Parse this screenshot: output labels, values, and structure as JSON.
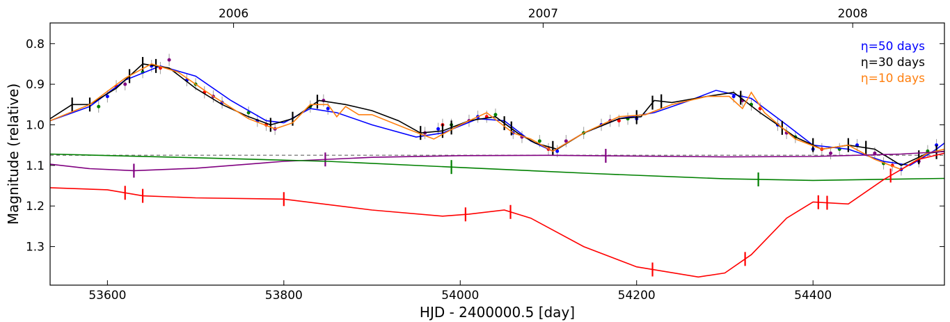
{
  "chart_data": {
    "type": "line",
    "x_label": "HJD - 2400000.5 [day]",
    "y_label": "Magnitude (relative)",
    "xlim": [
      53535,
      54549
    ],
    "ylim": [
      0.749,
      1.395
    ],
    "y_inverted": true,
    "xticks": [
      53600,
      53800,
      54000,
      54200,
      54400
    ],
    "yticks": [
      0.8,
      0.9,
      {
        "value": 1,
        "label": "1.0"
      },
      1.1,
      1.2,
      1.3
    ],
    "top_ticks": [
      {
        "value": 53743,
        "label": "2006"
      },
      {
        "value": 54094,
        "label": "2007"
      },
      {
        "value": 54445,
        "label": "2008"
      }
    ],
    "legend": "upper right",
    "reference_line": {
      "value": 1.075,
      "color": "#888888"
    },
    "series": [
      {
        "name": "η=50 days",
        "color": "#0000ff",
        "x": [
          53535,
          53580,
          53620,
          53660,
          53700,
          53740,
          53780,
          53800,
          53830,
          53860,
          53900,
          53950,
          53980,
          54020,
          54050,
          54080,
          54105,
          54140,
          54180,
          54220,
          54260,
          54290,
          54330,
          54370,
          54400,
          54440,
          54480,
          54510,
          54540,
          54549
        ],
        "values": [
          0.99,
          0.955,
          0.89,
          0.855,
          0.88,
          0.94,
          0.99,
          0.995,
          0.96,
          0.97,
          1.0,
          1.03,
          1.02,
          0.985,
          0.99,
          1.04,
          1.065,
          1.02,
          0.985,
          0.97,
          0.94,
          0.915,
          0.935,
          1.0,
          1.05,
          1.06,
          1.09,
          1.1,
          1.06,
          1.045
        ]
      },
      {
        "name": "η=30 days",
        "color": "#000000",
        "x": [
          53535,
          53560,
          53580,
          53610,
          53640,
          53670,
          53700,
          53730,
          53760,
          53785,
          53810,
          53840,
          53870,
          53900,
          53930,
          53955,
          53980,
          54010,
          54040,
          54065,
          54085,
          54110,
          54140,
          54180,
          54205,
          54220,
          54240,
          54280,
          54310,
          54340,
          54380,
          54410,
          54440,
          54470,
          54500,
          54530,
          54549
        ],
        "values": [
          0.985,
          0.95,
          0.95,
          0.91,
          0.85,
          0.86,
          0.91,
          0.95,
          0.98,
          1.0,
          0.985,
          0.94,
          0.95,
          0.965,
          0.99,
          1.02,
          1.015,
          0.99,
          0.98,
          1.02,
          1.045,
          1.06,
          1.02,
          0.985,
          0.98,
          0.94,
          0.945,
          0.93,
          0.92,
          0.97,
          1.03,
          1.06,
          1.05,
          1.06,
          1.1,
          1.07,
          1.065
        ],
        "knots": [
          53560,
          53580,
          53625,
          53640,
          53655,
          53785,
          53810,
          53838,
          53955,
          53980,
          53990,
          54050,
          54058,
          54105,
          54200,
          54218,
          54228,
          54318,
          54365,
          54400,
          54440,
          54460,
          54520,
          54540
        ]
      },
      {
        "name": "η=10 days",
        "color": "#ff7f0e",
        "x": [
          53535,
          53580,
          53620,
          53650,
          53680,
          53720,
          53760,
          53790,
          53810,
          53830,
          53850,
          53860,
          53870,
          53885,
          53900,
          53940,
          53970,
          54000,
          54030,
          54060,
          54080,
          54105,
          54140,
          54180,
          54210,
          54240,
          54280,
          54305,
          54320,
          54330,
          54345,
          54380,
          54410,
          54440,
          54470,
          54500,
          54530,
          54549
        ],
        "values": [
          0.99,
          0.95,
          0.885,
          0.85,
          0.87,
          0.93,
          0.985,
          1.01,
          0.995,
          0.95,
          0.95,
          0.98,
          0.955,
          0.975,
          0.975,
          1.01,
          1.035,
          1.0,
          0.97,
          1.02,
          1.035,
          1.065,
          1.02,
          0.98,
          0.975,
          0.95,
          0.93,
          0.93,
          0.96,
          0.92,
          0.97,
          1.035,
          1.06,
          1.05,
          1.085,
          1.11,
          1.07,
          1.06
        ]
      },
      {
        "color": "#800080",
        "x": [
          53535,
          53580,
          53630,
          53700,
          53800,
          53900,
          54000,
          54100,
          54200,
          54300,
          54400,
          54500,
          54549
        ],
        "values": [
          1.097,
          1.108,
          1.113,
          1.107,
          1.09,
          1.08,
          1.076,
          1.075,
          1.077,
          1.079,
          1.078,
          1.072,
          1.066
        ],
        "knots": [
          53630,
          53847,
          54165
        ]
      },
      {
        "color": "#008000",
        "x": [
          53535,
          53700,
          53850,
          54000,
          54150,
          54300,
          54400,
          54549
        ],
        "values": [
          1.072,
          1.081,
          1.09,
          1.105,
          1.12,
          1.133,
          1.137,
          1.132
        ],
        "knots": [
          53990,
          54338
        ]
      },
      {
        "color": "#ff0000",
        "x": [
          53535,
          53600,
          53640,
          53700,
          53800,
          53900,
          53980,
          54010,
          54050,
          54080,
          54140,
          54200,
          54270,
          54300,
          54330,
          54370,
          54400,
          54440,
          54480,
          54520,
          54549
        ],
        "values": [
          1.155,
          1.16,
          1.175,
          1.18,
          1.183,
          1.21,
          1.225,
          1.22,
          1.21,
          1.23,
          1.3,
          1.35,
          1.375,
          1.365,
          1.32,
          1.23,
          1.19,
          1.195,
          1.135,
          1.085,
          1.07
        ],
        "knots": [
          53620,
          53640,
          53800,
          54006,
          54057,
          54218,
          54323,
          54406,
          54416,
          54488
        ]
      }
    ],
    "observations": [
      {
        "color": "#0000ff",
        "error": 0.015,
        "x": [
          53600,
          53650,
          53690,
          53730,
          53770,
          53850,
          53975,
          54020,
          54060,
          54110,
          54160,
          54200,
          54310,
          54360,
          54400,
          54450,
          54500,
          54540
        ],
        "values": [
          0.93,
          0.855,
          0.89,
          0.945,
          0.99,
          0.96,
          1.01,
          0.98,
          1.02,
          1.065,
          1.0,
          0.985,
          0.93,
          1.0,
          1.06,
          1.05,
          1.11,
          1.05
        ]
      },
      {
        "color": "#008000",
        "error": 0.015,
        "x": [
          53590,
          53640,
          53700,
          53760,
          53830,
          53990,
          54040,
          54090,
          54140,
          54190,
          54330,
          54380,
          54430,
          54480,
          54530
        ],
        "values": [
          0.955,
          0.87,
          0.9,
          0.97,
          0.955,
          1.0,
          0.975,
          1.04,
          1.02,
          0.985,
          0.95,
          1.03,
          1.06,
          1.095,
          1.065
        ]
      },
      {
        "color": "#800080",
        "error": 0.015,
        "x": [
          53620,
          53670,
          53720,
          53790,
          53845,
          53960,
          54010,
          54070,
          54120,
          54170,
          54320,
          54370,
          54420,
          54470,
          54520
        ],
        "values": [
          0.9,
          0.84,
          0.93,
          1.01,
          0.94,
          1.02,
          0.99,
          1.03,
          1.04,
          0.99,
          0.94,
          1.02,
          1.07,
          1.07,
          1.09
        ]
      },
      {
        "color": "#ff0000",
        "error": 0.015,
        "x": [
          53610,
          53660,
          53710,
          53780,
          53980,
          54030,
          54100,
          54180,
          54340,
          54410,
          54490
        ],
        "values": [
          0.905,
          0.86,
          0.92,
          1.0,
          1.0,
          0.98,
          1.06,
          0.99,
          0.96,
          1.06,
          1.1
        ]
      }
    ]
  }
}
